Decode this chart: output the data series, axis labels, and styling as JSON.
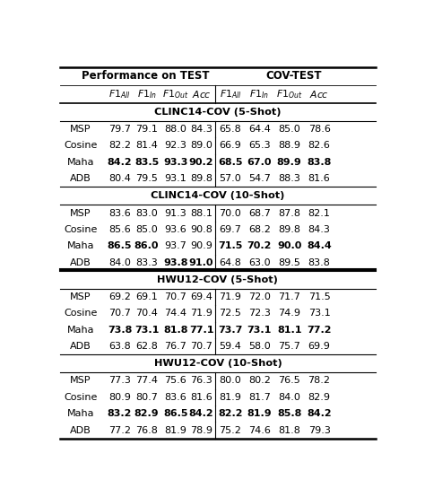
{
  "title_left": "Performance on TEST",
  "title_right": "COV-TEST",
  "col_headers_display": [
    "F1_{All}",
    "F1_{In}",
    "F1_{Out}",
    "Acc",
    "F1_{All}",
    "F1_{In}",
    "F1_{Out}",
    "Acc"
  ],
  "sections": [
    {
      "name": "CLINC14-COV (5-Shot)",
      "rows": [
        {
          "method": "MSP",
          "vals": [
            "79.7",
            "79.1",
            "88.0",
            "84.3",
            "65.8",
            "64.4",
            "85.0",
            "78.6"
          ],
          "bold": [
            false,
            false,
            false,
            false,
            false,
            false,
            false,
            false
          ]
        },
        {
          "method": "Cosine",
          "vals": [
            "82.2",
            "81.4",
            "92.3",
            "89.0",
            "66.9",
            "65.3",
            "88.9",
            "82.6"
          ],
          "bold": [
            false,
            false,
            false,
            false,
            false,
            false,
            false,
            false
          ]
        },
        {
          "method": "Maha",
          "vals": [
            "84.2",
            "83.5",
            "93.3",
            "90.2",
            "68.5",
            "67.0",
            "89.9",
            "83.8"
          ],
          "bold": [
            true,
            true,
            true,
            true,
            true,
            true,
            true,
            true
          ]
        },
        {
          "method": "ADB",
          "vals": [
            "80.4",
            "79.5",
            "93.1",
            "89.8",
            "57.0",
            "54.7",
            "88.3",
            "81.6"
          ],
          "bold": [
            false,
            false,
            false,
            false,
            false,
            false,
            false,
            false
          ]
        }
      ]
    },
    {
      "name": "CLINC14-COV (10-Shot)",
      "rows": [
        {
          "method": "MSP",
          "vals": [
            "83.6",
            "83.0",
            "91.3",
            "88.1",
            "70.0",
            "68.7",
            "87.8",
            "82.1"
          ],
          "bold": [
            false,
            false,
            false,
            false,
            false,
            false,
            false,
            false
          ]
        },
        {
          "method": "Cosine",
          "vals": [
            "85.6",
            "85.0",
            "93.6",
            "90.8",
            "69.7",
            "68.2",
            "89.8",
            "84.3"
          ],
          "bold": [
            false,
            false,
            false,
            false,
            false,
            false,
            false,
            false
          ]
        },
        {
          "method": "Maha",
          "vals": [
            "86.5",
            "86.0",
            "93.7",
            "90.9",
            "71.5",
            "70.2",
            "90.0",
            "84.4"
          ],
          "bold": [
            true,
            true,
            false,
            false,
            true,
            true,
            true,
            true
          ]
        },
        {
          "method": "ADB",
          "vals": [
            "84.0",
            "83.3",
            "93.8",
            "91.0",
            "64.8",
            "63.0",
            "89.5",
            "83.8"
          ],
          "bold": [
            false,
            false,
            true,
            true,
            false,
            false,
            false,
            false
          ]
        }
      ]
    },
    {
      "name": "HWU12-COV (5-Shot)",
      "rows": [
        {
          "method": "MSP",
          "vals": [
            "69.2",
            "69.1",
            "70.7",
            "69.4",
            "71.9",
            "72.0",
            "71.7",
            "71.5"
          ],
          "bold": [
            false,
            false,
            false,
            false,
            false,
            false,
            false,
            false
          ]
        },
        {
          "method": "Cosine",
          "vals": [
            "70.7",
            "70.4",
            "74.4",
            "71.9",
            "72.5",
            "72.3",
            "74.9",
            "73.1"
          ],
          "bold": [
            false,
            false,
            false,
            false,
            false,
            false,
            false,
            false
          ]
        },
        {
          "method": "Maha",
          "vals": [
            "73.8",
            "73.1",
            "81.8",
            "77.1",
            "73.7",
            "73.1",
            "81.1",
            "77.2"
          ],
          "bold": [
            true,
            true,
            true,
            true,
            true,
            true,
            true,
            true
          ]
        },
        {
          "method": "ADB",
          "vals": [
            "63.8",
            "62.8",
            "76.7",
            "70.7",
            "59.4",
            "58.0",
            "75.7",
            "69.9"
          ],
          "bold": [
            false,
            false,
            false,
            false,
            false,
            false,
            false,
            false
          ]
        }
      ]
    },
    {
      "name": "HWU12-COV (10-Shot)",
      "rows": [
        {
          "method": "MSP",
          "vals": [
            "77.3",
            "77.4",
            "75.6",
            "76.3",
            "80.0",
            "80.2",
            "76.5",
            "78.2"
          ],
          "bold": [
            false,
            false,
            false,
            false,
            false,
            false,
            false,
            false
          ]
        },
        {
          "method": "Cosine",
          "vals": [
            "80.9",
            "80.7",
            "83.6",
            "81.6",
            "81.9",
            "81.7",
            "84.0",
            "82.9"
          ],
          "bold": [
            false,
            false,
            false,
            false,
            false,
            false,
            false,
            false
          ]
        },
        {
          "method": "Maha",
          "vals": [
            "83.2",
            "82.9",
            "86.5",
            "84.2",
            "82.2",
            "81.9",
            "85.8",
            "84.2"
          ],
          "bold": [
            true,
            true,
            true,
            true,
            true,
            true,
            true,
            true
          ]
        },
        {
          "method": "ADB",
          "vals": [
            "77.2",
            "76.8",
            "81.9",
            "78.9",
            "75.2",
            "74.6",
            "81.8",
            "79.3"
          ],
          "bold": [
            false,
            false,
            false,
            false,
            false,
            false,
            false,
            false
          ]
        }
      ]
    }
  ]
}
